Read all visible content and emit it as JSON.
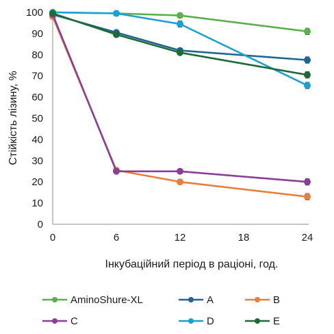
{
  "chart_data": {
    "type": "line",
    "xlabel": "Інкубаційний період в раціоні, год.",
    "ylabel": "Стійкість лізину, %",
    "x_ticks": [
      0,
      6,
      12,
      18,
      24
    ],
    "y_ticks": [
      0,
      10,
      20,
      30,
      40,
      50,
      60,
      70,
      80,
      90,
      100
    ],
    "xlim": [
      0,
      24
    ],
    "ylim": [
      0,
      100
    ],
    "grid": false,
    "legend_position": "bottom",
    "series": [
      {
        "name": "AminoShure-XL",
        "color": "#5ab04a",
        "x": [
          0,
          6,
          12,
          24
        ],
        "y": [
          100,
          99.5,
          98.5,
          91
        ],
        "err": [
          0,
          0,
          1,
          1.5
        ]
      },
      {
        "name": "A",
        "color": "#1f6591",
        "x": [
          0,
          6,
          12,
          24
        ],
        "y": [
          99,
          90.5,
          82,
          77.5
        ],
        "err": [
          0,
          1,
          0.5,
          1.5
        ]
      },
      {
        "name": "B",
        "color": "#e8803b",
        "x": [
          0,
          6,
          12,
          24
        ],
        "y": [
          98,
          25.5,
          20,
          13
        ],
        "err": [
          0,
          1,
          0.5,
          1.5
        ]
      },
      {
        "name": "C",
        "color": "#8a3f96",
        "x": [
          0,
          6,
          12,
          24
        ],
        "y": [
          99,
          25,
          25,
          20
        ],
        "err": [
          0,
          1,
          0.5,
          1.5
        ]
      },
      {
        "name": "D",
        "color": "#1aa0d4",
        "x": [
          0,
          6,
          12,
          24
        ],
        "y": [
          100,
          99.5,
          94.5,
          65.5
        ],
        "err": [
          0,
          0,
          1.5,
          1.5
        ]
      },
      {
        "name": "E",
        "color": "#1e6b38",
        "x": [
          0,
          6,
          12,
          24
        ],
        "y": [
          99.5,
          89.5,
          81,
          70.5
        ],
        "err": [
          0,
          0.5,
          0.5,
          1.5
        ]
      }
    ]
  }
}
